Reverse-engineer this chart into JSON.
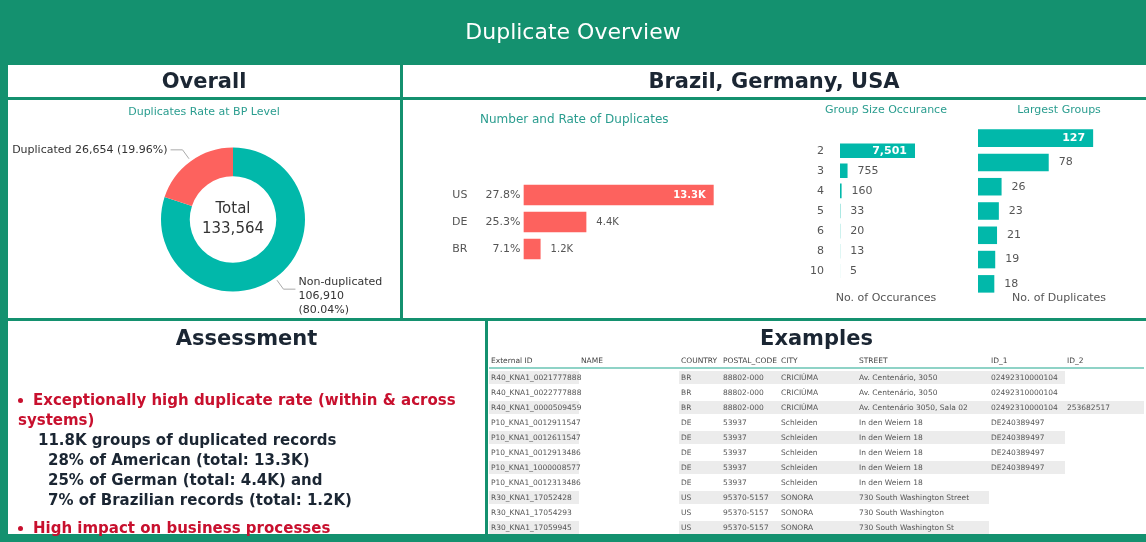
{
  "chart_data": [
    {
      "type": "other",
      "title": "Duplicate Overview"
    },
    {
      "type": "donut",
      "title": "Overall",
      "subtitle": "Duplicates Rate at BP Level",
      "categories": [
        "Non-duplicated",
        "Duplicated"
      ],
      "values": [
        106910,
        26654
      ],
      "colors": [
        "#01b8aa",
        "#fd625e"
      ],
      "value_labels": [
        "106,910 (80.04%)",
        "26,654 (19.96%)"
      ],
      "annotations": [
        "Total",
        "133,564"
      ],
      "legend": false
    },
    {
      "type": "bar",
      "orientation": "horizontal",
      "title": "Brazil, Germany, USA",
      "subtitle": "Number and Rate of Duplicates",
      "categories": [
        "US",
        "DE",
        "BR"
      ],
      "values": [
        13300,
        4400,
        1200
      ],
      "color": "#fd625e",
      "value_labels": [
        "13.3K",
        "4.4K",
        "1.2K"
      ],
      "annotations": [
        "27.8%",
        "25.3%",
        "7.1%"
      ],
      "legend": false,
      "grid": false
    },
    {
      "type": "bar",
      "orientation": "horizontal",
      "title": "Group Size Occurance",
      "xlabel": "No. of Occurances",
      "categories": [
        "2",
        "3",
        "4",
        "5",
        "6",
        "8",
        "10"
      ],
      "values": [
        7501,
        755,
        160,
        33,
        20,
        13,
        5
      ],
      "color": "#01b8aa",
      "value_labels": [
        "7,501",
        "755",
        "160",
        "33",
        "20",
        "13",
        "5"
      ],
      "legend": false,
      "grid": false
    },
    {
      "type": "bar",
      "orientation": "horizontal",
      "title": "Largest Groups",
      "xlabel": "No. of Duplicates",
      "categories": [
        null,
        null,
        null,
        null,
        null,
        null,
        null
      ],
      "values": [
        127,
        78,
        26,
        23,
        21,
        19,
        18
      ],
      "color": "#01b8aa",
      "data_labels": true,
      "tick_labels": false,
      "legend": false,
      "grid": false
    },
    {
      "type": "other",
      "title": "Assessment",
      "annotations": [
        "Exceptionally high duplicate rate (within & across systems)",
        "11.8K groups of duplicated records",
        "28% of American (total: 13.3K)",
        "25% of German (total: 4.4K) and",
        "7% of Brazilian records (total: 1.2K)",
        "High impact on business processes"
      ]
    },
    {
      "type": "other",
      "title": "Examples",
      "categories": [
        "External ID",
        "NAME",
        "COUNTRY",
        "POSTAL_CODE",
        "CITY",
        "STREET",
        "ID_1",
        "ID_2"
      ],
      "annotations": [
        "R40_KNA1_0021777888",
        null,
        "BR",
        "88802-000",
        "CRICIÚMA",
        "Av. Centenário, 3050",
        "02492310000104",
        null,
        "R40_KNA1_0022777888",
        null,
        "BR",
        "88802-000",
        "CRICIÚMA",
        "Av. Centenário, 3050",
        "02492310000104",
        null,
        "R40_KNA1_0000509459",
        null,
        "BR",
        "88802-000",
        "CRICIÚMA",
        "Av. Centenário 3050, Sala 02",
        "02492310000104",
        "253682517",
        "P10_KNA1_0012911547",
        null,
        "DE",
        "53937",
        "Schleiden",
        "In den Weiern 18",
        "DE240389497",
        null,
        "P10_KNA1_0012611547",
        null,
        "DE",
        "53937",
        "Schleiden",
        "In den Weiern 18",
        "DE240389497",
        null,
        "P10_KNA1_0012913486",
        null,
        "DE",
        "53937",
        "Schleiden",
        "In den Weiern 18",
        "DE240389497",
        null,
        "P10_KNA1_1000008577",
        null,
        "DE",
        "53937",
        "Schleiden",
        "In den Weiern 18",
        "DE240389497",
        null,
        "P10_KNA1_0012313486",
        null,
        "DE",
        "53937",
        "Schleiden",
        "In den Weiern 18",
        null,
        null,
        "R30_KNA1_17052428",
        null,
        "US",
        "95370-5157",
        "SONORA",
        "730 South Washington Street",
        null,
        null,
        "R30_KNA1_17054293",
        null,
        "US",
        "95370-5157",
        "SONORA",
        "730 South Washington",
        null,
        null,
        "R30_KNA1_17059945",
        null,
        "US",
        "95370-5157",
        "SONORA",
        "730 South Washington St",
        null,
        null
      ]
    }
  ]
}
